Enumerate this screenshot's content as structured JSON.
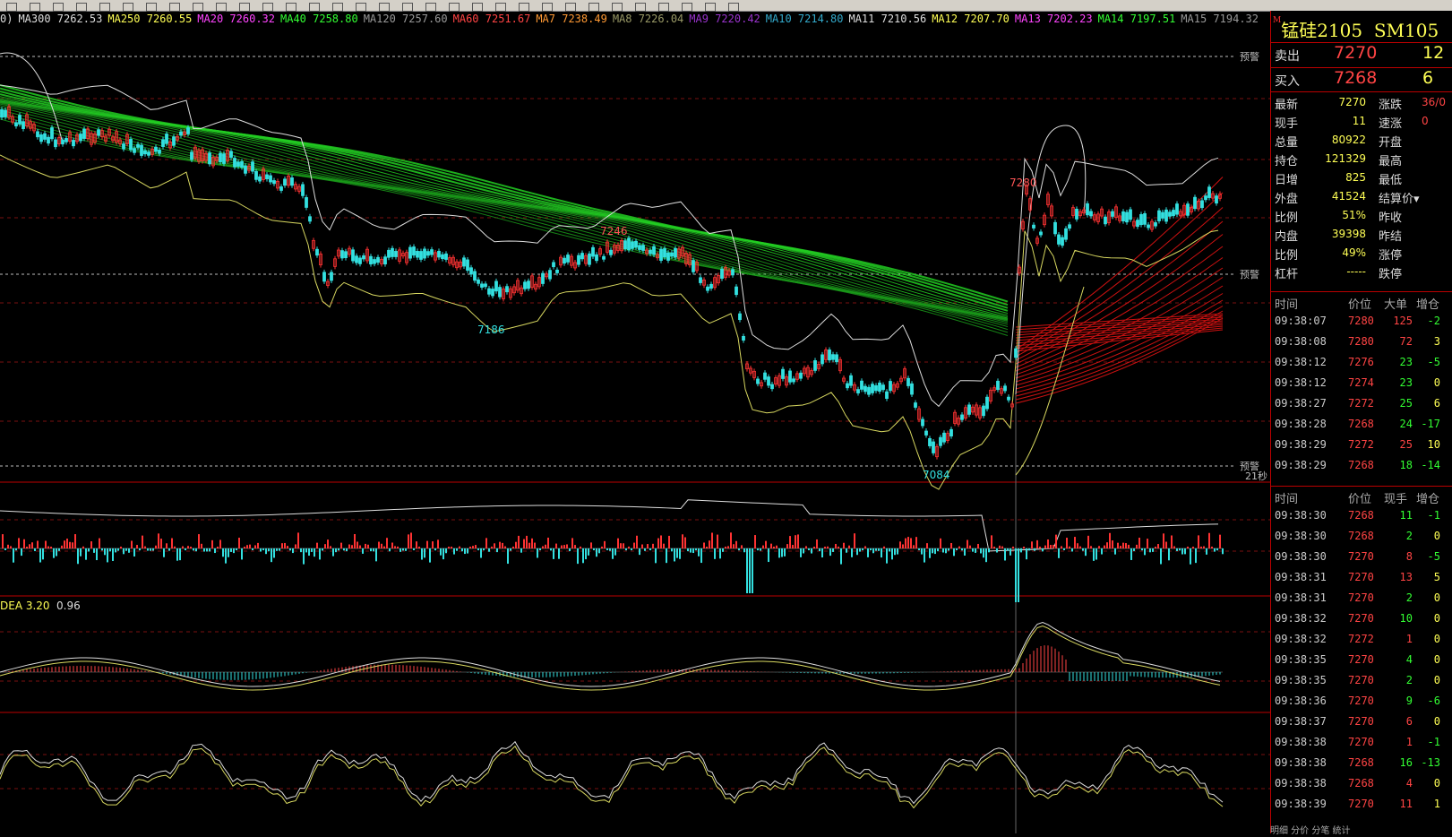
{
  "ma_legend": [
    {
      "text": "0)",
      "color": "#dddddd"
    },
    {
      "text": "MA300 7262.53",
      "color": "#dddddd"
    },
    {
      "text": "MA250 7260.55",
      "color": "#ffff55"
    },
    {
      "text": "MA20 7260.32",
      "color": "#ff44ff"
    },
    {
      "text": "MA40 7258.80",
      "color": "#33ff33"
    },
    {
      "text": "MA120 7257.60",
      "color": "#999999"
    },
    {
      "text": "MA60 7251.67",
      "color": "#ff4444"
    },
    {
      "text": "MA7 7238.49",
      "color": "#ff9933"
    },
    {
      "text": "MA8 7226.04",
      "color": "#999966"
    },
    {
      "text": "MA9 7220.42",
      "color": "#9933cc"
    },
    {
      "text": "MA10 7214.80",
      "color": "#33aacc"
    },
    {
      "text": "MA11 7210.56",
      "color": "#dddddd"
    },
    {
      "text": "MA12 7207.70",
      "color": "#ffff55"
    },
    {
      "text": "MA13 7202.23",
      "color": "#ff44ff"
    },
    {
      "text": "MA14 7197.51",
      "color": "#33ff33"
    },
    {
      "text": "MA15 7194.32",
      "color": "#999999"
    }
  ],
  "chart": {
    "warn_label": "预警",
    "countdown": "21秒",
    "price_labels": [
      "7280",
      "7246",
      "7186",
      "7084"
    ],
    "macd_label": "DEA 3.20",
    "macd_value": "0.96"
  },
  "symbol": {
    "marker": "M",
    "name": "锰硅2105",
    "code": "SM105"
  },
  "quote": {
    "sell_label": "卖出",
    "sell_price": "7270",
    "sell_vol": "12",
    "buy_label": "买入",
    "buy_price": "7268",
    "buy_vol": "6"
  },
  "info": [
    {
      "l1": "最新",
      "v1": "7270",
      "l2": "涨跌",
      "v2": "36/0"
    },
    {
      "l1": "现手",
      "v1": "11",
      "l2": "速涨",
      "v2": "0"
    },
    {
      "l1": "总量",
      "v1": "80922",
      "l2": "开盘",
      "v2": ""
    },
    {
      "l1": "持仓",
      "v1": "121329",
      "l2": "最高",
      "v2": ""
    },
    {
      "l1": "日增",
      "v1": "825",
      "l2": "最低",
      "v2": ""
    },
    {
      "l1": "外盘",
      "v1": "41524",
      "l2": "结算价▾",
      "v2": ""
    },
    {
      "l1": "比例",
      "v1": "51%",
      "l2": "昨收",
      "v2": ""
    },
    {
      "l1": "内盘",
      "v1": "39398",
      "l2": "昨结",
      "v2": ""
    },
    {
      "l1": "比例",
      "v1": "49%",
      "l2": "涨停",
      "v2": ""
    },
    {
      "l1": "杠杆",
      "v1": "-----",
      "l2": "跌停",
      "v2": ""
    }
  ],
  "table1": {
    "headers": [
      "时间",
      "价位",
      "大单",
      "增仓"
    ],
    "rows": [
      {
        "t": "09:38:07",
        "p": "7280",
        "v": "125",
        "c": "-2",
        "vc": "red",
        "cc": "green"
      },
      {
        "t": "09:38:08",
        "p": "7280",
        "v": "72",
        "c": "3",
        "vc": "red",
        "cc": "yellow"
      },
      {
        "t": "09:38:12",
        "p": "7276",
        "v": "23",
        "c": "-5",
        "vc": "green",
        "cc": "green"
      },
      {
        "t": "09:38:12",
        "p": "7274",
        "v": "23",
        "c": "0",
        "vc": "green",
        "cc": "yellow"
      },
      {
        "t": "09:38:27",
        "p": "7272",
        "v": "25",
        "c": "6",
        "vc": "green",
        "cc": "yellow"
      },
      {
        "t": "09:38:28",
        "p": "7268",
        "v": "24",
        "c": "-17",
        "vc": "green",
        "cc": "green"
      },
      {
        "t": "09:38:29",
        "p": "7272",
        "v": "25",
        "c": "10",
        "vc": "red",
        "cc": "yellow"
      },
      {
        "t": "09:38:29",
        "p": "7268",
        "v": "18",
        "c": "-14",
        "vc": "green",
        "cc": "green"
      }
    ]
  },
  "table2": {
    "headers": [
      "时间",
      "价位",
      "现手",
      "增仓"
    ],
    "rows": [
      {
        "t": "09:38:30",
        "p": "7268",
        "v": "11",
        "c": "-1",
        "vc": "green",
        "cc": "green"
      },
      {
        "t": "09:38:30",
        "p": "7268",
        "v": "2",
        "c": "0",
        "vc": "green",
        "cc": "yellow"
      },
      {
        "t": "09:38:30",
        "p": "7270",
        "v": "8",
        "c": "-5",
        "vc": "red",
        "cc": "green"
      },
      {
        "t": "09:38:31",
        "p": "7270",
        "v": "13",
        "c": "5",
        "vc": "red",
        "cc": "yellow"
      },
      {
        "t": "09:38:31",
        "p": "7270",
        "v": "2",
        "c": "0",
        "vc": "green",
        "cc": "yellow"
      },
      {
        "t": "09:38:32",
        "p": "7270",
        "v": "10",
        "c": "0",
        "vc": "green",
        "cc": "yellow"
      },
      {
        "t": "09:38:32",
        "p": "7272",
        "v": "1",
        "c": "0",
        "vc": "red",
        "cc": "yellow"
      },
      {
        "t": "09:38:35",
        "p": "7270",
        "v": "4",
        "c": "0",
        "vc": "green",
        "cc": "yellow"
      },
      {
        "t": "09:38:35",
        "p": "7270",
        "v": "2",
        "c": "0",
        "vc": "green",
        "cc": "yellow"
      },
      {
        "t": "09:38:36",
        "p": "7270",
        "v": "9",
        "c": "-6",
        "vc": "green",
        "cc": "green"
      },
      {
        "t": "09:38:37",
        "p": "7270",
        "v": "6",
        "c": "0",
        "vc": "red",
        "cc": "yellow"
      },
      {
        "t": "09:38:38",
        "p": "7270",
        "v": "1",
        "c": "-1",
        "vc": "red",
        "cc": "green"
      },
      {
        "t": "09:38:38",
        "p": "7268",
        "v": "16",
        "c": "-13",
        "vc": "green",
        "cc": "green"
      },
      {
        "t": "09:38:38",
        "p": "7268",
        "v": "4",
        "c": "0",
        "vc": "red",
        "cc": "yellow"
      },
      {
        "t": "09:38:39",
        "p": "7270",
        "v": "11",
        "c": "1",
        "vc": "red",
        "cc": "yellow"
      }
    ]
  },
  "bottom_tabs": "明细   分价   分笔   统计"
}
